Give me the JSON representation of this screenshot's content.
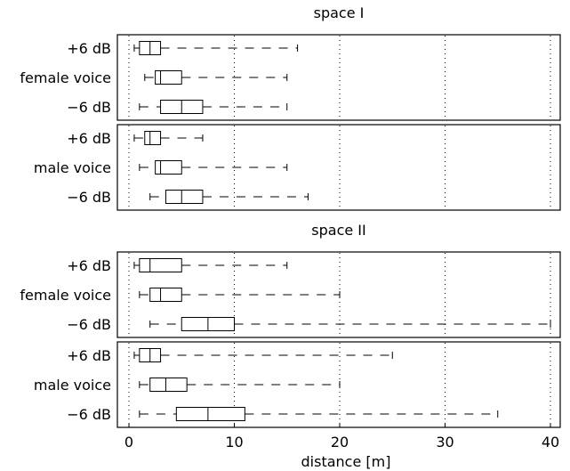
{
  "chart_data": {
    "type": "boxplot",
    "xlabel": "distance [m]",
    "xlim": [
      -1,
      41
    ],
    "xticks": [
      0,
      10,
      20,
      30,
      40
    ],
    "grid": "vertical-dotted",
    "sections": [
      {
        "title": "space I",
        "panels": [
          {
            "rows": [
              {
                "label": "+6 dB",
                "min": 0.5,
                "q1": 1,
                "median": 2,
                "q3": 3,
                "max": 16
              },
              {
                "label": "female voice",
                "min": 1.5,
                "q1": 2.5,
                "median": 3,
                "q3": 5,
                "max": 15
              },
              {
                "label": "−6 dB",
                "min": 1,
                "q1": 3,
                "median": 5,
                "q3": 7,
                "max": 15
              }
            ]
          },
          {
            "rows": [
              {
                "label": "+6 dB",
                "min": 0.5,
                "q1": 1.5,
                "median": 2,
                "q3": 3,
                "max": 7
              },
              {
                "label": "male voice",
                "min": 1,
                "q1": 2.5,
                "median": 3,
                "q3": 5,
                "max": 15
              },
              {
                "label": "−6 dB",
                "min": 2,
                "q1": 3.5,
                "median": 5,
                "q3": 7,
                "max": 17
              }
            ]
          }
        ]
      },
      {
        "title": "space II",
        "panels": [
          {
            "rows": [
              {
                "label": "+6 dB",
                "min": 0.5,
                "q1": 1,
                "median": 2,
                "q3": 5,
                "max": 15
              },
              {
                "label": "female voice",
                "min": 1,
                "q1": 2,
                "median": 3,
                "q3": 5,
                "max": 20
              },
              {
                "label": "−6 dB",
                "min": 2,
                "q1": 5,
                "median": 7.5,
                "q3": 10,
                "max": 40
              }
            ]
          },
          {
            "rows": [
              {
                "label": "+6 dB",
                "min": 0.5,
                "q1": 1,
                "median": 2,
                "q3": 3,
                "max": 25
              },
              {
                "label": "male voice",
                "min": 1,
                "q1": 2,
                "median": 3.5,
                "q3": 5.5,
                "max": 20
              },
              {
                "label": "−6 dB",
                "min": 1,
                "q1": 4.5,
                "median": 7.5,
                "q3": 11,
                "max": 35
              }
            ]
          }
        ]
      }
    ]
  }
}
